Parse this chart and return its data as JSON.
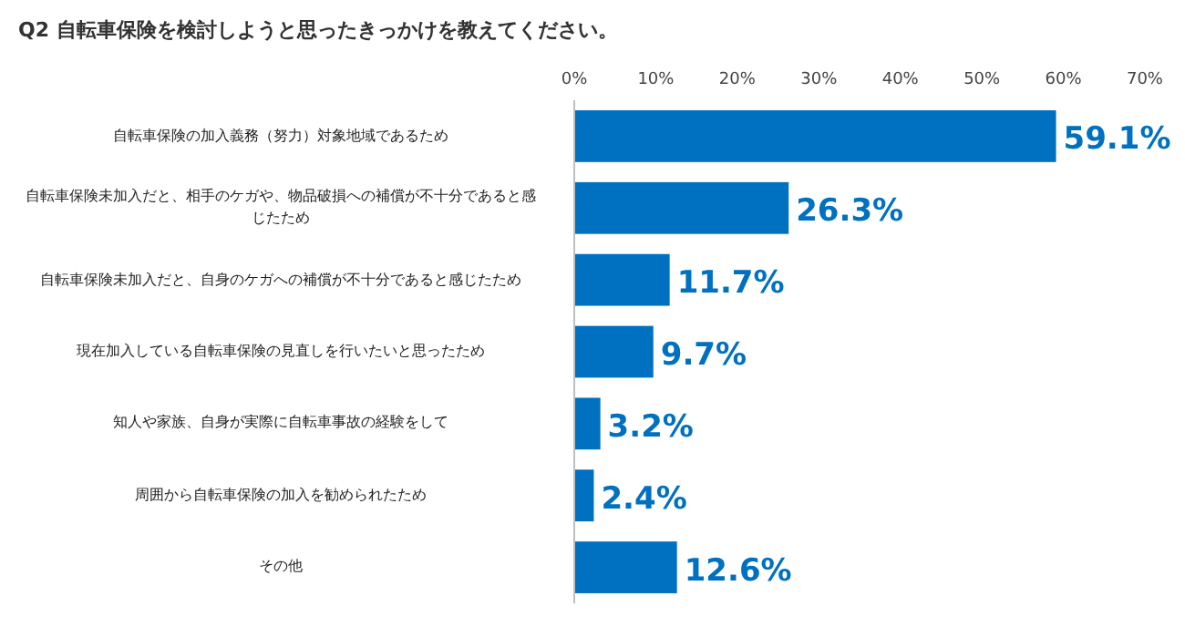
{
  "chart_data": {
    "type": "bar",
    "orientation": "horizontal",
    "title": "Q2 自転車保険を検討しようと思ったきっかけを教えてください。",
    "categories": [
      "自転車保険の加入義務（努力）対象地域であるため",
      "自転車保険未加入だと、相手のケガや、物品破損への補償が不十分であると感じたため",
      "自転車保険未加入だと、自身のケガへの補償が不十分であると感じたため",
      "現在加入している自転車保険の見直しを行いたいと思ったため",
      "知人や家族、自身が実際に自転車事故の経験をして",
      "周囲から自転車保険の加入を勧められたため",
      "その他"
    ],
    "values": [
      59.1,
      26.3,
      11.7,
      9.7,
      3.2,
      2.4,
      12.6
    ],
    "value_labels": [
      "59.1%",
      "26.3%",
      "11.7%",
      "9.7%",
      "3.2%",
      "2.4%",
      "12.6%"
    ],
    "color": "#0070c0",
    "xlim": [
      0,
      70
    ],
    "xticks": [
      {
        "value": 0,
        "label": "0%"
      },
      {
        "value": 10,
        "label": "10%"
      },
      {
        "value": 20,
        "label": "20%"
      },
      {
        "value": 30,
        "label": "30%"
      },
      {
        "value": 40,
        "label": "40%"
      },
      {
        "value": 50,
        "label": "50%"
      },
      {
        "value": 60,
        "label": "60%"
      },
      {
        "value": 70,
        "label": "70%"
      }
    ],
    "grid": false
  }
}
